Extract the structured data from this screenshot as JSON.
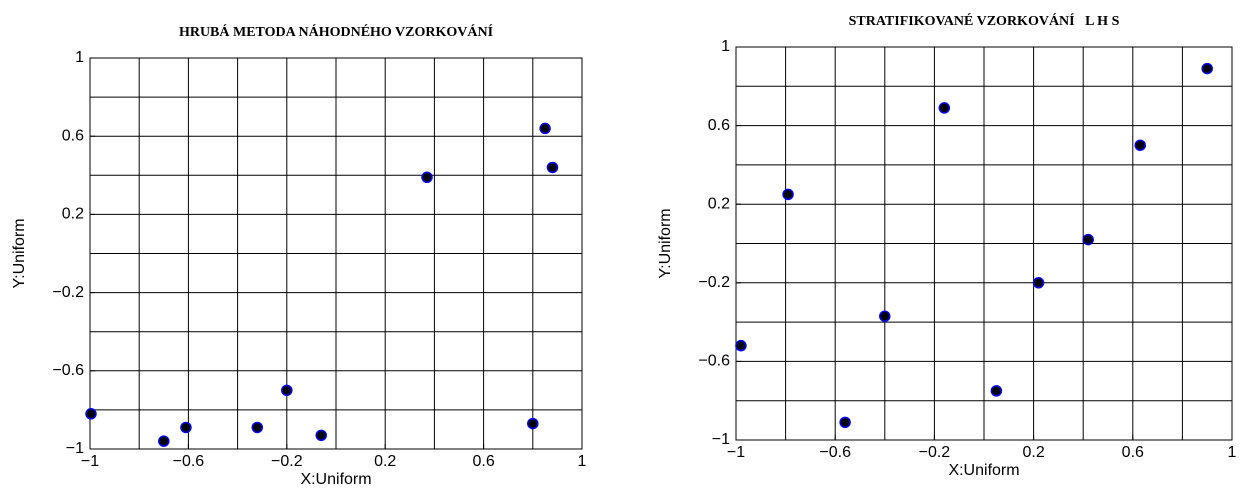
{
  "chart_data": [
    {
      "type": "scatter",
      "title": "HRUBÁ METODA NÁHODNÉHO VZORKOVÁNÍ",
      "xlabel": "X:Uniform",
      "ylabel": "Y:Uniform",
      "x": [
        -0.996,
        -0.7,
        -0.61,
        -0.32,
        -0.2,
        -0.06,
        0.37,
        0.8,
        0.85,
        0.88
      ],
      "y": [
        -0.82,
        -0.96,
        -0.89,
        -0.89,
        -0.7,
        -0.93,
        0.39,
        -0.87,
        0.64,
        0.44
      ],
      "color": "#000000",
      "edge_color": "#0000ff",
      "xlim": [
        -1,
        1
      ],
      "ylim": [
        -1,
        1
      ],
      "xticks": [
        {
          "value": -1,
          "label": "−1"
        },
        {
          "value": -0.6,
          "label": "−0.6"
        },
        {
          "value": -0.2,
          "label": "−0.2"
        },
        0.2,
        0.6,
        1
      ],
      "yticks": [
        {
          "value": -1,
          "label": "−1"
        },
        {
          "value": -0.6,
          "label": "−0.6"
        },
        {
          "value": -0.2,
          "label": "−0.2"
        },
        0.2,
        0.6,
        1
      ],
      "grid_x": [
        -0.8,
        -0.6,
        -0.4,
        -0.2,
        0,
        0.2,
        0.4,
        0.6,
        0.8
      ],
      "grid_y": [
        -0.8,
        -0.6,
        -0.4,
        -0.2,
        0,
        0.2,
        0.4,
        0.6,
        0.8
      ],
      "grid": true
    },
    {
      "type": "scatter",
      "title": "STRATIFIKOVANÉ VZORKOVÁNÍ   L H S",
      "xlabel": "X:Uniform",
      "ylabel": "Y:Uniform",
      "x": [
        -0.98,
        -0.79,
        -0.56,
        -0.4,
        -0.16,
        0.05,
        0.22,
        0.42,
        0.63,
        0.9
      ],
      "y": [
        -0.52,
        0.25,
        -0.91,
        -0.37,
        0.69,
        -0.75,
        -0.2,
        0.02,
        0.5,
        0.89
      ],
      "color": "#000000",
      "edge_color": "#0000ff",
      "xlim": [
        -1,
        1
      ],
      "ylim": [
        -1,
        1
      ],
      "xticks": [
        {
          "value": -1,
          "label": "−1"
        },
        {
          "value": -0.6,
          "label": "−0.6"
        },
        {
          "value": -0.2,
          "label": "−0.2"
        },
        0.2,
        0.6,
        1
      ],
      "yticks": [
        {
          "value": -1,
          "label": "−1"
        },
        {
          "value": -0.6,
          "label": "−0.6"
        },
        {
          "value": -0.2,
          "label": "−0.2"
        },
        0.2,
        0.6,
        1
      ],
      "grid_x": [
        -0.8,
        -0.6,
        -0.4,
        -0.2,
        0,
        0.2,
        0.4,
        0.6,
        0.8
      ],
      "grid_y": [
        -0.8,
        -0.6,
        -0.4,
        -0.2,
        0,
        0.2,
        0.4,
        0.6,
        0.8
      ],
      "grid": true
    }
  ]
}
